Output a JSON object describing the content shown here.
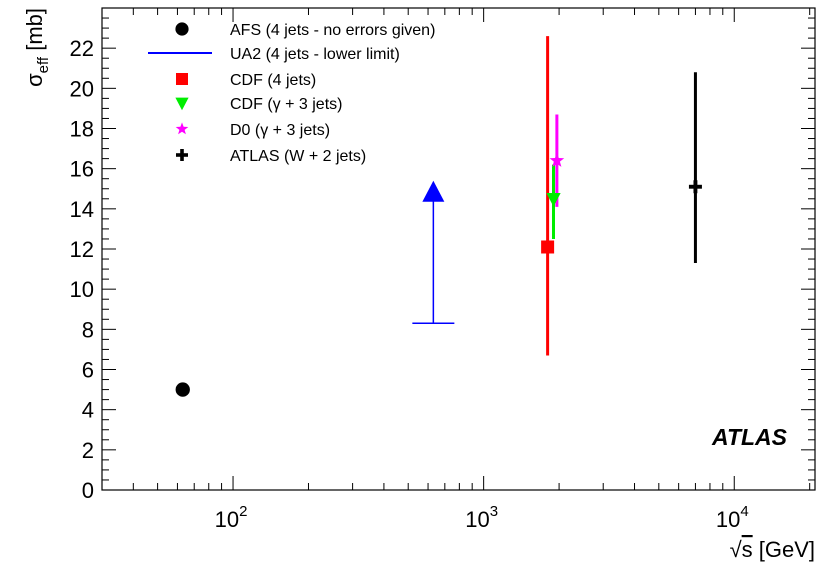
{
  "chart_data": {
    "type": "scatter",
    "xlabel_prefix": "√",
    "xlabel_var": "s",
    "xlabel_unit": " [GeV]",
    "ylabel_sym": "σ",
    "ylabel_sub": "eff",
    "ylabel_unit": " [mb]",
    "x_scale": "log",
    "xlim": [
      30,
      21000
    ],
    "ylim": [
      0,
      24
    ],
    "grid": false,
    "legend_position": "top-left",
    "annotation": "ATLAS",
    "y_ticks": [
      0,
      2,
      4,
      6,
      8,
      10,
      12,
      14,
      16,
      18,
      20,
      22
    ],
    "x_ticks": [
      {
        "value": 100,
        "base": "10",
        "exp": "2"
      },
      {
        "value": 1000,
        "base": "10",
        "exp": "3"
      },
      {
        "value": 10000,
        "base": "10",
        "exp": "4"
      }
    ],
    "series": [
      {
        "name": "AFS (4 jets - no errors given)",
        "marker": "circle",
        "color": "#000000",
        "x": 63,
        "y": 5.0
      },
      {
        "name": "UA2 (4 jets - lower limit)",
        "marker": "triangle-up",
        "color": "#0000ff",
        "x": 630,
        "y_lower": 8.3,
        "y_arrow": 14.8
      },
      {
        "name": "CDF (4 jets)",
        "marker": "square",
        "color": "#ff0000",
        "x": 1800,
        "y": 12.1,
        "y_err_low": 6.7,
        "y_err_high": 22.6
      },
      {
        "name": "CDF (γ + 3 jets)",
        "marker": "triangle-down",
        "color": "#00ee00",
        "x": 1900,
        "y": 14.5,
        "y_err_low": 12.5,
        "y_err_high": 16.2
      },
      {
        "name": "D0 (γ + 3 jets)",
        "marker": "star",
        "color": "#ff00ff",
        "x": 1960,
        "y": 16.4,
        "y_err_low": 14.1,
        "y_err_high": 18.7
      },
      {
        "name": "ATLAS (W + 2 jets)",
        "marker": "cross",
        "color": "#000000",
        "x": 7000,
        "y": 15.1,
        "y_err_low": 11.3,
        "y_err_high": 20.8
      }
    ]
  }
}
